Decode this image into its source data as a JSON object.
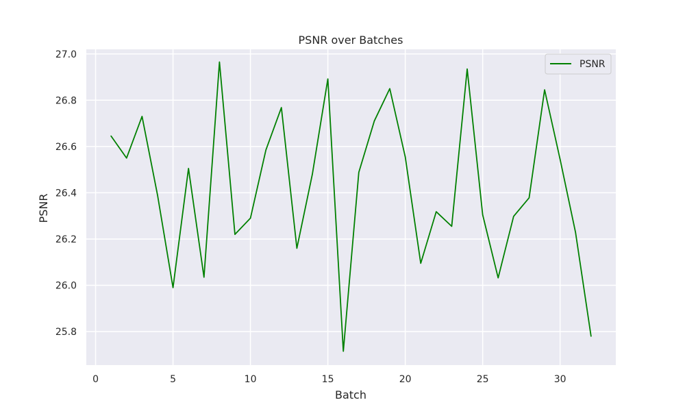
{
  "chart_data": {
    "type": "line",
    "title": "PSNR over Batches",
    "xlabel": "Batch",
    "ylabel": "PSNR",
    "xlim": [
      -0.6,
      33.6
    ],
    "ylim": [
      25.655,
      27.02
    ],
    "x_ticks": [
      0,
      5,
      10,
      15,
      20,
      25,
      30
    ],
    "y_ticks": [
      25.8,
      26.0,
      26.2,
      26.4,
      26.6,
      26.8,
      27.0
    ],
    "x_tick_labels": [
      "0",
      "5",
      "10",
      "15",
      "20",
      "25",
      "30"
    ],
    "y_tick_labels": [
      "25.8",
      "26.0",
      "26.2",
      "26.4",
      "26.6",
      "26.8",
      "27.0"
    ],
    "grid": true,
    "legend_position": "top-right",
    "series": [
      {
        "name": "PSNR",
        "color": "#008000",
        "x": [
          1,
          2,
          3,
          4,
          5,
          6,
          7,
          8,
          9,
          10,
          11,
          12,
          13,
          14,
          15,
          16,
          17,
          18,
          19,
          20,
          21,
          22,
          23,
          24,
          25,
          26,
          27,
          28,
          29,
          30,
          31,
          32
        ],
        "values": [
          26.645,
          26.55,
          26.73,
          26.39,
          25.99,
          26.505,
          26.035,
          26.965,
          26.22,
          26.29,
          26.585,
          26.768,
          26.16,
          26.48,
          26.892,
          25.715,
          26.488,
          26.71,
          26.85,
          26.555,
          26.095,
          26.318,
          26.255,
          26.935,
          26.305,
          26.032,
          26.298,
          26.378,
          26.845,
          26.545,
          26.228,
          25.78
        ]
      }
    ]
  }
}
